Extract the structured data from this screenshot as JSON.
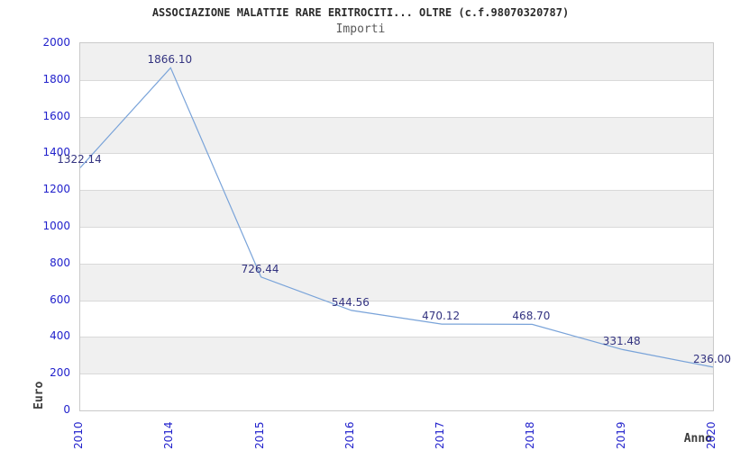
{
  "header": {
    "title": "ASSOCIAZIONE MALATTIE RARE ERITROCITI... OLTRE (c.f.98070320787)",
    "subtitle": "Importi"
  },
  "chart_data": {
    "type": "line",
    "title": "ASSOCIAZIONE MALATTIE RARE ERITROCITI... OLTRE (c.f.98070320787)",
    "subtitle": "Importi",
    "categories": [
      "2010",
      "2014",
      "2015",
      "2016",
      "2017",
      "2018",
      "2019",
      "2020"
    ],
    "values": [
      1322.14,
      1866.1,
      726.44,
      544.56,
      470.12,
      468.7,
      331.48,
      236.0
    ],
    "point_labels": [
      "1322.14",
      "1866.10",
      "726.44",
      "544.56",
      "470.12",
      "468.70",
      "331.48",
      "236.00"
    ],
    "xlabel": "Anno",
    "ylabel": "Euro",
    "ylim": [
      0,
      2000
    ],
    "ytick_step": 200,
    "y_ticks": [
      "2000",
      "1800",
      "1600",
      "1400",
      "1200",
      "1000",
      "800",
      "600",
      "400",
      "200",
      "0"
    ],
    "grid": "horizontal-bands",
    "legend": "none",
    "colors": {
      "line": "#79a3d9",
      "point_label": "#333380",
      "axis_tick": "#2222cc",
      "band_gray": "#f0f0f0",
      "band_white": "#ffffff",
      "gridline": "#d9d9d9",
      "plot_border": "#c9c9c9"
    }
  }
}
